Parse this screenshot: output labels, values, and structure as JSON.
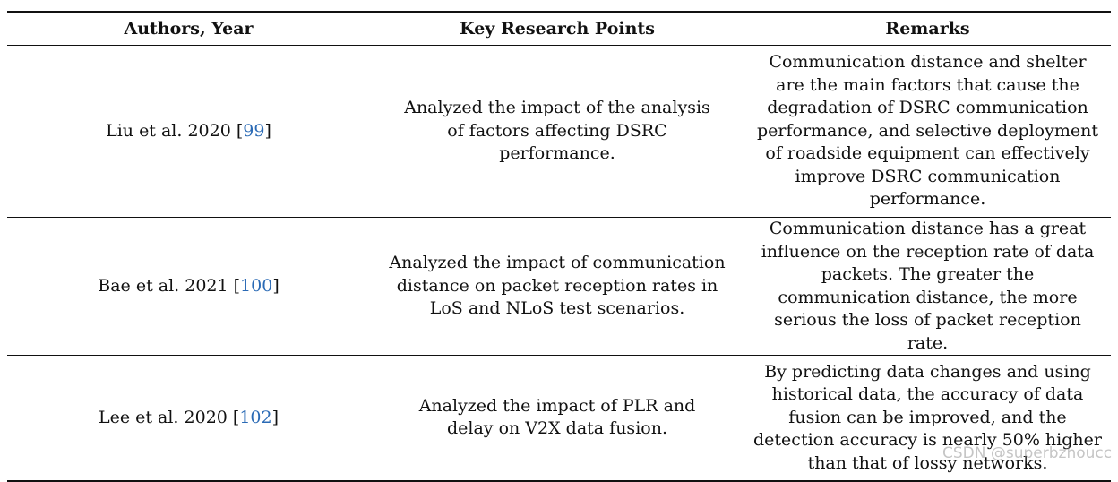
{
  "table": {
    "headers": [
      "Authors, Year",
      "Key Research Points",
      "Remarks"
    ],
    "rows": [
      {
        "author": "Liu et al. 2020 [",
        "ref": "99",
        "author_end": "]",
        "key_points": "Analyzed the impact of the analysis of factors affecting DSRC performance.",
        "remarks": "Communication distance and shelter are the main factors that cause the degradation of DSRC communication performance, and selective deployment of roadside equipment can effectively improve DSRC communication performance."
      },
      {
        "author": "Bae et al. 2021 [",
        "ref": "100",
        "author_end": "]",
        "key_points": "Analyzed the impact of communication distance on packet reception rates in LoS and NLoS test scenarios.",
        "remarks": "Communication distance has a great influence on the reception rate of data packets. The greater the communication distance, the more serious the loss of packet reception rate."
      },
      {
        "author": "Lee et al. 2020 [",
        "ref": "102",
        "author_end": "]",
        "key_points": "Analyzed the impact of PLR and delay on V2X data fusion.",
        "remarks": "By predicting data changes and using historical data, the accuracy of data fusion can be improved, and the detection accuracy is nearly 50% higher than that of lossy networks."
      }
    ]
  },
  "watermark": "CSDN @superbzhoucc",
  "colors": {
    "reference_link": "#2a6ab5",
    "rule": "#111111"
  }
}
